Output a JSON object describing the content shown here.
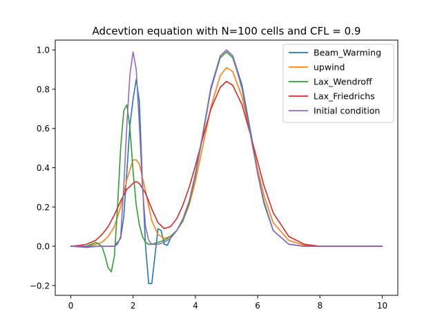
{
  "chart_data": {
    "type": "line",
    "title": "Adcevtion equation with N=100 cells and CFL = 0.9",
    "xlabel": "",
    "ylabel": "",
    "xlim": [
      -0.5,
      10.5
    ],
    "ylim": [
      -0.25,
      1.05
    ],
    "xticks": [
      0,
      2,
      4,
      6,
      8,
      10
    ],
    "xtick_labels": [
      "0",
      "2",
      "4",
      "6",
      "8",
      "10"
    ],
    "yticks": [
      -0.2,
      0.0,
      0.2,
      0.4,
      0.6,
      0.8,
      1.0
    ],
    "ytick_labels": [
      "−0.2",
      "0.0",
      "0.2",
      "0.4",
      "0.6",
      "0.8",
      "1.0"
    ],
    "grid": false,
    "legend_position": "top-right",
    "series": [
      {
        "name": "Beam_Warming",
        "color": "#1f77b4",
        "x": [
          0,
          0.5,
          0.9,
          1.2,
          1.4,
          1.6,
          1.7,
          1.8,
          1.9,
          2.0,
          2.1,
          2.2,
          2.3,
          2.4,
          2.5,
          2.6,
          2.7,
          2.8,
          2.9,
          3.0,
          3.1,
          3.2,
          3.3,
          3.4,
          3.6,
          3.8,
          4.0,
          4.2,
          4.5,
          4.8,
          5.0,
          5.2,
          5.5,
          5.8,
          6.0,
          6.2,
          6.5,
          7.0,
          7.5,
          8.0,
          9.0,
          10.0
        ],
        "y": [
          0.0,
          -0.005,
          0.0,
          0.0,
          0.0,
          0.04,
          0.15,
          0.38,
          0.62,
          0.75,
          0.85,
          0.74,
          0.33,
          0.0,
          -0.19,
          -0.19,
          -0.05,
          0.09,
          0.08,
          0.01,
          0.005,
          0.04,
          0.06,
          0.08,
          0.13,
          0.22,
          0.37,
          0.54,
          0.81,
          0.97,
          1.0,
          0.97,
          0.82,
          0.56,
          0.37,
          0.22,
          0.08,
          0.01,
          0.0,
          0.0,
          0.0,
          0.0
        ]
      },
      {
        "name": "upwind",
        "color": "#ff7f0e",
        "x": [
          0,
          0.5,
          0.8,
          1.0,
          1.2,
          1.4,
          1.6,
          1.8,
          2.0,
          2.1,
          2.2,
          2.4,
          2.6,
          2.8,
          3.0,
          3.2,
          3.4,
          3.6,
          3.8,
          4.0,
          4.2,
          4.5,
          4.8,
          5.0,
          5.2,
          5.5,
          5.8,
          6.0,
          6.2,
          6.5,
          7.0,
          7.5,
          8.0,
          9.0,
          10.0
        ],
        "y": [
          0.0,
          0.0,
          0.01,
          0.02,
          0.05,
          0.1,
          0.2,
          0.34,
          0.44,
          0.44,
          0.42,
          0.28,
          0.13,
          0.06,
          0.04,
          0.05,
          0.08,
          0.13,
          0.21,
          0.33,
          0.48,
          0.71,
          0.87,
          0.91,
          0.89,
          0.76,
          0.55,
          0.39,
          0.26,
          0.12,
          0.03,
          0.005,
          0.0,
          0.0,
          0.0
        ]
      },
      {
        "name": "Lax_Wendroff",
        "color": "#2ca02c",
        "x": [
          0,
          0.5,
          0.8,
          1.0,
          1.1,
          1.2,
          1.3,
          1.4,
          1.5,
          1.6,
          1.7,
          1.8,
          1.9,
          2.0,
          2.1,
          2.2,
          2.3,
          2.4,
          2.5,
          2.6,
          2.8,
          3.0,
          3.2,
          3.4,
          3.6,
          3.8,
          4.0,
          4.2,
          4.5,
          4.8,
          5.0,
          5.2,
          5.5,
          5.8,
          6.0,
          6.2,
          6.5,
          7.0,
          7.5,
          8.0,
          9.0,
          10.0
        ],
        "y": [
          0.0,
          0.0,
          0.02,
          0.0,
          -0.05,
          -0.11,
          -0.13,
          -0.05,
          0.2,
          0.5,
          0.69,
          0.72,
          0.6,
          0.38,
          0.21,
          0.11,
          0.05,
          0.02,
          0.01,
          0.01,
          0.02,
          0.03,
          0.05,
          0.08,
          0.13,
          0.22,
          0.36,
          0.53,
          0.8,
          0.96,
          0.99,
          0.96,
          0.81,
          0.55,
          0.37,
          0.22,
          0.08,
          0.01,
          0.0,
          0.0,
          0.0,
          0.0
        ]
      },
      {
        "name": "Lax_Friedrichs",
        "color": "#d62728",
        "x": [
          0,
          0.3,
          0.5,
          0.8,
          1.0,
          1.2,
          1.4,
          1.6,
          1.8,
          2.0,
          2.1,
          2.2,
          2.4,
          2.6,
          2.8,
          3.0,
          3.2,
          3.4,
          3.6,
          3.8,
          4.0,
          4.2,
          4.5,
          4.8,
          5.0,
          5.2,
          5.5,
          5.8,
          6.0,
          6.2,
          6.5,
          7.0,
          7.5,
          8.0,
          9.0,
          10.0
        ],
        "y": [
          0.0,
          0.005,
          0.01,
          0.03,
          0.06,
          0.1,
          0.16,
          0.23,
          0.29,
          0.32,
          0.33,
          0.32,
          0.27,
          0.19,
          0.12,
          0.09,
          0.1,
          0.14,
          0.21,
          0.3,
          0.41,
          0.53,
          0.7,
          0.81,
          0.84,
          0.82,
          0.72,
          0.55,
          0.43,
          0.31,
          0.17,
          0.05,
          0.01,
          0.0,
          0.0,
          0.0
        ]
      },
      {
        "name": "Initial condition",
        "color": "#9467bd",
        "x": [
          0,
          0.5,
          1.0,
          1.2,
          1.4,
          1.5,
          1.6,
          1.7,
          1.8,
          1.9,
          2.0,
          2.1,
          2.2,
          2.3,
          2.4,
          2.5,
          2.6,
          2.7,
          2.8,
          3.0,
          3.2,
          3.4,
          3.6,
          3.8,
          4.0,
          4.2,
          4.5,
          4.8,
          5.0,
          5.2,
          5.5,
          5.8,
          6.0,
          6.2,
          6.5,
          7.0,
          7.5,
          8.0,
          9.0,
          10.0
        ],
        "y": [
          0.0,
          0.0,
          0.0,
          0.0,
          0.0,
          0.01,
          0.05,
          0.3,
          0.62,
          0.88,
          0.99,
          0.9,
          0.62,
          0.3,
          0.1,
          0.03,
          0.01,
          0.01,
          0.01,
          0.02,
          0.04,
          0.08,
          0.14,
          0.23,
          0.37,
          0.54,
          0.8,
          0.97,
          1.0,
          0.97,
          0.8,
          0.54,
          0.37,
          0.23,
          0.08,
          0.01,
          0.0,
          0.0,
          0.0,
          0.0
        ]
      }
    ]
  }
}
